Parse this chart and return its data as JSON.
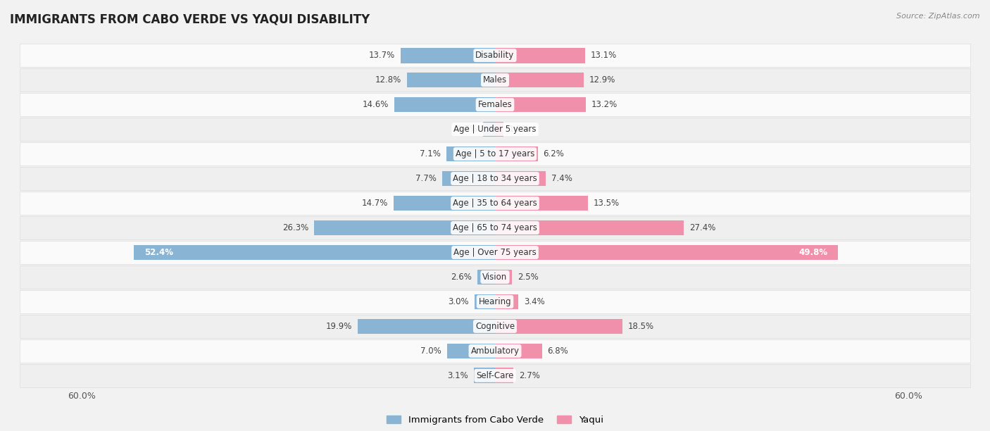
{
  "title": "IMMIGRANTS FROM CABO VERDE VS YAQUI DISABILITY",
  "source": "Source: ZipAtlas.com",
  "categories": [
    "Disability",
    "Males",
    "Females",
    "Age | Under 5 years",
    "Age | 5 to 17 years",
    "Age | 18 to 34 years",
    "Age | 35 to 64 years",
    "Age | 65 to 74 years",
    "Age | Over 75 years",
    "Vision",
    "Hearing",
    "Cognitive",
    "Ambulatory",
    "Self-Care"
  ],
  "cabo_verde": [
    13.7,
    12.8,
    14.6,
    1.7,
    7.1,
    7.7,
    14.7,
    26.3,
    52.4,
    2.6,
    3.0,
    19.9,
    7.0,
    3.1
  ],
  "yaqui": [
    13.1,
    12.9,
    13.2,
    1.2,
    6.2,
    7.4,
    13.5,
    27.4,
    49.8,
    2.5,
    3.4,
    18.5,
    6.8,
    2.7
  ],
  "cabo_verde_color": "#8ab4d4",
  "yaqui_color": "#f090aa",
  "axis_limit": 60.0,
  "bar_height": 0.62,
  "legend_label_cabo": "Immigrants from Cabo Verde",
  "legend_label_yaqui": "Yaqui",
  "bg_color": "#f2f2f2",
  "row_colors": [
    "#fafafa",
    "#efefef"
  ]
}
